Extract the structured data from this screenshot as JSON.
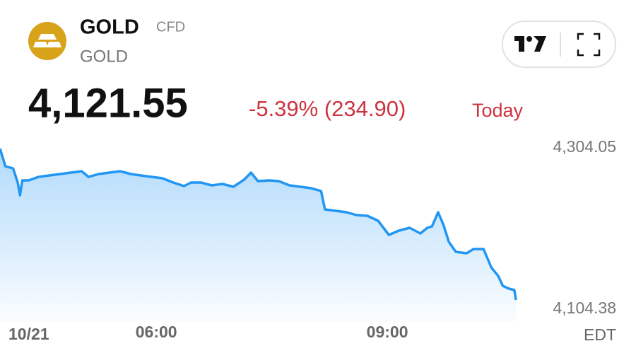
{
  "header": {
    "symbol": "GOLD",
    "kind": "CFD",
    "name": "GOLD",
    "price": "4,121.55",
    "change": "-5.39% (234.90)",
    "period": "Today"
  },
  "chart_data": {
    "type": "area",
    "color": "#2196f3",
    "x": [
      3.97,
      4.04,
      4.14,
      4.2,
      4.23,
      4.26,
      4.34,
      4.47,
      4.61,
      4.75,
      4.89,
      5.03,
      5.12,
      5.25,
      5.39,
      5.53,
      5.67,
      5.8,
      5.94,
      6.08,
      6.22,
      6.36,
      6.45,
      6.58,
      6.72,
      6.86,
      7.0,
      7.14,
      7.23,
      7.32,
      7.46,
      7.59,
      7.73,
      7.87,
      8.01,
      8.14,
      8.19,
      8.33,
      8.47,
      8.6,
      8.74,
      8.88,
      9.02,
      9.15,
      9.29,
      9.43,
      9.52,
      9.58,
      9.66,
      9.73,
      9.8,
      9.89,
      10.03,
      10.12,
      10.25,
      10.35,
      10.44,
      10.5,
      10.58,
      10.65,
      10.67
    ],
    "values": [
      4303.17,
      4281.28,
      4278.65,
      4261.13,
      4245.37,
      4263.76,
      4263.76,
      4268.14,
      4269.89,
      4271.64,
      4273.4,
      4275.15,
      4268.14,
      4271.64,
      4273.4,
      4275.15,
      4271.64,
      4269.89,
      4268.14,
      4266.39,
      4261.13,
      4256.76,
      4261.13,
      4261.13,
      4257.63,
      4259.38,
      4255.88,
      4264.64,
      4273.4,
      4262.89,
      4263.76,
      4262.89,
      4257.63,
      4255.88,
      4254.13,
      4250.63,
      4227.86,
      4226.11,
      4224.36,
      4220.85,
      4219.97,
      4213.84,
      4196.33,
      4201.58,
      4205.08,
      4198.08,
      4205.08,
      4206.84,
      4224.36,
      4208.59,
      4187.57,
      4175.31,
      4173.56,
      4178.81,
      4178.81,
      4156.04,
      4145.53,
      4133.27,
      4129.77,
      4128.02,
      4115.76
    ],
    "xlim": [
      3.97,
      11
    ],
    "xticks": [
      {
        "value": 6,
        "label": "06:00"
      },
      {
        "value": 9,
        "label": "09:00"
      }
    ],
    "date_label": "10/21",
    "x_unit": "EDT",
    "ylim": [
      4104.38,
      4304.05
    ],
    "yticks": [
      {
        "value": 4304.05,
        "label": "4,304.05"
      },
      {
        "value": 4104.38,
        "label": "4,104.38"
      }
    ]
  }
}
